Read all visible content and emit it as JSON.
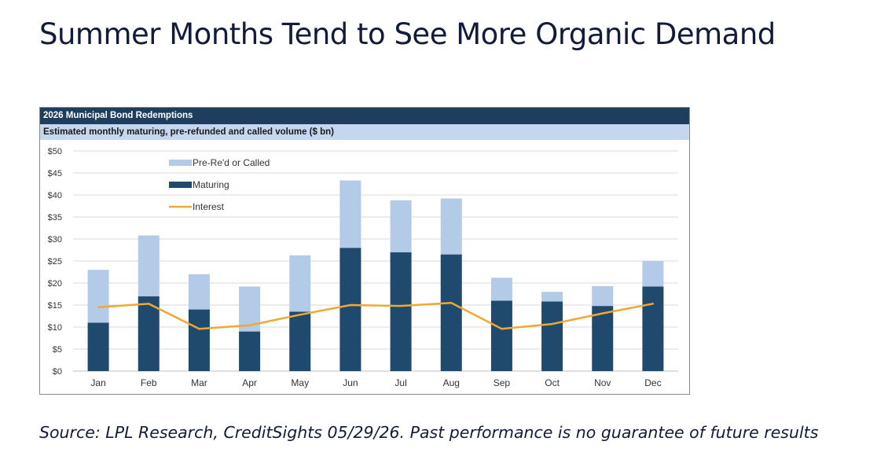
{
  "title": "Summer Months Tend to See More Organic Demand",
  "source": "Source: LPL Research, CreditSights 05/29/26. Past performance is no guarantee of future results",
  "chart_data": {
    "type": "bar",
    "stacked": true,
    "title": "2026 Municipal Bond Redemptions",
    "subtitle": "Estimated monthly maturing, pre-refunded and called volume ($ bn)",
    "categories": [
      "Jan",
      "Feb",
      "Mar",
      "Apr",
      "May",
      "Jun",
      "Jul",
      "Aug",
      "Sep",
      "Oct",
      "Nov",
      "Dec"
    ],
    "y_ticks": [
      "$0",
      "$5",
      "$10",
      "$15",
      "$20",
      "$25",
      "$30",
      "$35",
      "$40",
      "$45",
      "$50"
    ],
    "ylim": [
      0,
      50
    ],
    "grid": true,
    "legend_position": "top-left",
    "series": [
      {
        "name": "Maturing",
        "kind": "bar",
        "color": "#1f4a6e",
        "values": [
          11,
          17,
          14,
          9,
          13.5,
          28,
          27,
          26.5,
          16,
          15.8,
          14.8,
          19.2
        ]
      },
      {
        "name": "Pre-Re'd or Called",
        "kind": "bar",
        "color": "#b4cbe8",
        "values": [
          12,
          13.8,
          8,
          10.2,
          12.8,
          15.3,
          11.8,
          12.7,
          5.2,
          2.2,
          4.5,
          5.8
        ]
      },
      {
        "name": "Interest",
        "kind": "line",
        "color": "#f0a830",
        "values": [
          14.5,
          15.3,
          9.6,
          10.4,
          12.8,
          15,
          14.8,
          15.5,
          9.6,
          10.7,
          13.1,
          15.3
        ]
      }
    ]
  }
}
